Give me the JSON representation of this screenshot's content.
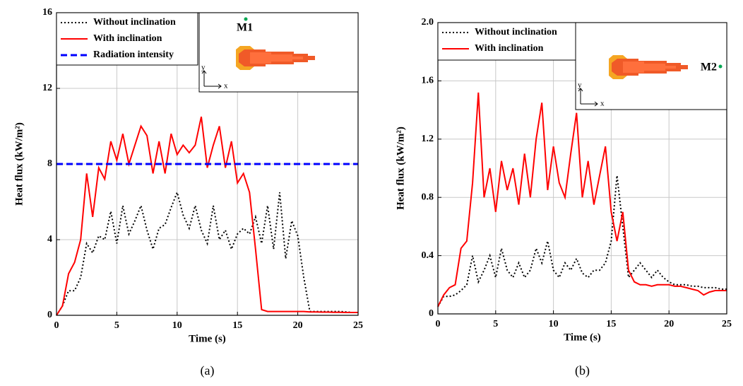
{
  "chart_data": [
    {
      "type": "line",
      "panel": "(a)",
      "x_label": "Time (s)",
      "y_label": "Heat flux (kW/m²)",
      "inset_label": "M1",
      "inset_axes": [
        "x",
        "y"
      ],
      "x": [
        0,
        0.5,
        1,
        1.5,
        2,
        2.5,
        3,
        3.5,
        4,
        4.5,
        5,
        5.5,
        6,
        6.5,
        7,
        7.5,
        8,
        8.5,
        9,
        9.5,
        10,
        10.5,
        11,
        11.5,
        12,
        12.5,
        13,
        13.5,
        14,
        14.5,
        15,
        15.5,
        16,
        16.5,
        17,
        17.5,
        18,
        18.5,
        19,
        19.5,
        20,
        20.5,
        21,
        21.5,
        22,
        22.5,
        23,
        23.5,
        24,
        24.5,
        25
      ],
      "series": [
        {
          "name": "Without inclination",
          "color": "#000000",
          "style": "dotted",
          "values": [
            0,
            0.5,
            1.3,
            1.3,
            2.0,
            3.8,
            3.3,
            4.2,
            4.0,
            5.5,
            3.8,
            5.8,
            4.3,
            5.0,
            5.8,
            4.5,
            3.5,
            4.6,
            4.8,
            5.7,
            6.5,
            5.3,
            4.6,
            5.8,
            4.5,
            3.8,
            5.8,
            4.0,
            4.5,
            3.5,
            4.3,
            4.6,
            4.3,
            5.2,
            3.8,
            5.8,
            3.5,
            6.5,
            3.0,
            5.0,
            4.2,
            2.0,
            0.2,
            0.2,
            0.2,
            0.2,
            0.2,
            0.2,
            0.18,
            0.15,
            0.15
          ]
        },
        {
          "name": "With inclination",
          "color": "#ff0000",
          "style": "solid",
          "values": [
            0,
            0.5,
            2.2,
            2.8,
            4.0,
            7.5,
            5.2,
            7.8,
            7.2,
            9.2,
            8.2,
            9.6,
            8.0,
            9.0,
            10.0,
            9.5,
            7.5,
            9.2,
            7.5,
            9.6,
            8.5,
            9.0,
            8.6,
            9.0,
            10.5,
            7.8,
            9.0,
            10.0,
            7.8,
            9.2,
            7.0,
            7.5,
            6.5,
            3.5,
            0.3,
            0.2,
            0.2,
            0.2,
            0.2,
            0.2,
            0.2,
            0.2,
            0.18,
            0.18,
            0.17,
            0.17,
            0.16,
            0.16,
            0.15,
            0.15,
            0.15
          ]
        },
        {
          "name": "Radiation intensity",
          "color": "#0000ff",
          "style": "dashed",
          "values": [
            8,
            8,
            8,
            8,
            8,
            8,
            8,
            8,
            8,
            8,
            8,
            8,
            8,
            8,
            8,
            8,
            8,
            8,
            8,
            8,
            8,
            8,
            8,
            8,
            8,
            8,
            8,
            8,
            8,
            8,
            8,
            8,
            8,
            8,
            8,
            8,
            8,
            8,
            8,
            8,
            8,
            8,
            8,
            8,
            8,
            8,
            8,
            8,
            8,
            8,
            8
          ]
        }
      ],
      "xlim": [
        0,
        25
      ],
      "xticks": [
        0,
        5,
        10,
        15,
        20,
        25
      ],
      "ylim": [
        0,
        16
      ],
      "yticks": [
        0,
        4,
        8,
        12,
        16
      ],
      "grid": true,
      "legend": "upper left"
    },
    {
      "type": "line",
      "panel": "(b)",
      "x_label": "Time (s)",
      "y_label": "Heat flux (kW/m²)",
      "inset_label": "M2",
      "inset_axes": [
        "x",
        "y"
      ],
      "x": [
        0,
        0.5,
        1,
        1.5,
        2,
        2.5,
        3,
        3.5,
        4,
        4.5,
        5,
        5.5,
        6,
        6.5,
        7,
        7.5,
        8,
        8.5,
        9,
        9.5,
        10,
        10.5,
        11,
        11.5,
        12,
        12.5,
        13,
        13.5,
        14,
        14.5,
        15,
        15.5,
        16,
        16.5,
        17,
        17.5,
        18,
        18.5,
        19,
        19.5,
        20,
        20.5,
        21,
        21.5,
        22,
        22.5,
        23,
        23.5,
        24,
        24.5,
        25
      ],
      "series": [
        {
          "name": "Without inclination",
          "color": "#000000",
          "style": "dotted",
          "values": [
            0.05,
            0.12,
            0.12,
            0.13,
            0.16,
            0.2,
            0.4,
            0.22,
            0.3,
            0.4,
            0.25,
            0.45,
            0.3,
            0.25,
            0.35,
            0.25,
            0.3,
            0.45,
            0.35,
            0.5,
            0.3,
            0.25,
            0.35,
            0.3,
            0.38,
            0.28,
            0.25,
            0.3,
            0.3,
            0.35,
            0.5,
            0.95,
            0.6,
            0.25,
            0.3,
            0.35,
            0.3,
            0.25,
            0.3,
            0.25,
            0.22,
            0.2,
            0.2,
            0.2,
            0.19,
            0.19,
            0.18,
            0.18,
            0.18,
            0.17,
            0.17
          ]
        },
        {
          "name": "With inclination",
          "color": "#ff0000",
          "style": "solid",
          "values": [
            0.05,
            0.13,
            0.18,
            0.2,
            0.45,
            0.5,
            0.9,
            1.52,
            0.8,
            1.0,
            0.7,
            1.05,
            0.85,
            1.0,
            0.75,
            1.1,
            0.8,
            1.2,
            1.45,
            0.85,
            1.15,
            0.9,
            0.8,
            1.1,
            1.38,
            0.8,
            1.05,
            0.75,
            0.95,
            1.15,
            0.7,
            0.5,
            0.7,
            0.3,
            0.22,
            0.2,
            0.2,
            0.19,
            0.2,
            0.2,
            0.2,
            0.19,
            0.19,
            0.18,
            0.17,
            0.16,
            0.13,
            0.15,
            0.16,
            0.16,
            0.16
          ]
        }
      ],
      "xlim": [
        0,
        25
      ],
      "xticks": [
        0,
        5,
        10,
        15,
        20,
        25
      ],
      "ylim": [
        0,
        2
      ],
      "yticks": [
        0,
        0.4,
        0.8,
        1.2,
        1.6,
        {
          "value": 2,
          "label": "2.0"
        }
      ],
      "grid": true,
      "legend": "upper left"
    }
  ]
}
